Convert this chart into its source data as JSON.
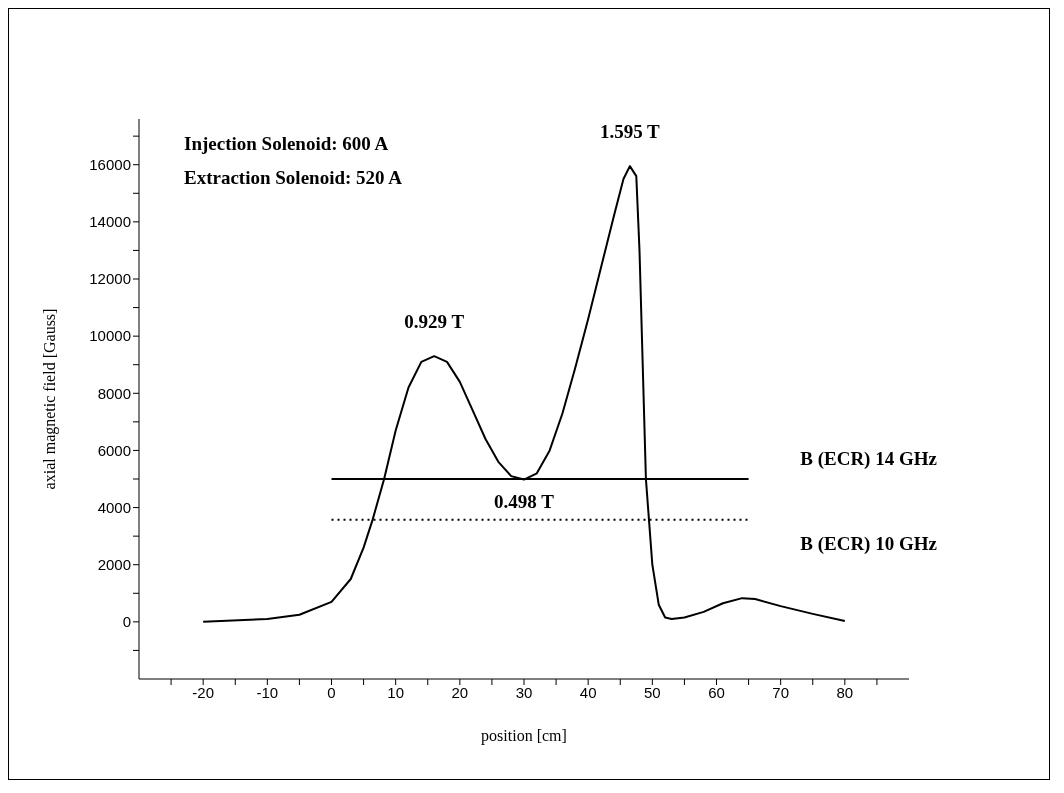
{
  "chart_data": {
    "type": "line",
    "xlabel": "position [cm]",
    "ylabel": "axial magnetic field  [Gauss]",
    "xlim": [
      -30,
      90
    ],
    "xticks": [
      {
        "value": -25,
        "label": null
      },
      -20,
      {
        "value": -15,
        "label": null
      },
      -10,
      {
        "value": -5,
        "label": null
      },
      0,
      {
        "value": 5,
        "label": null
      },
      10,
      {
        "value": 15,
        "label": null
      },
      20,
      {
        "value": 25,
        "label": null
      },
      30,
      {
        "value": 35,
        "label": null
      },
      40,
      {
        "value": 45,
        "label": null
      },
      50,
      {
        "value": 55,
        "label": null
      },
      60,
      {
        "value": 65,
        "label": null
      },
      70,
      {
        "value": 75,
        "label": null
      },
      80,
      {
        "value": 85,
        "label": null
      }
    ],
    "ylim": [
      -2000,
      17600
    ],
    "yticks": [
      {
        "value": -1000,
        "label": null
      },
      0,
      {
        "value": 1000,
        "label": null
      },
      2000,
      {
        "value": 3000,
        "label": null
      },
      4000,
      {
        "value": 5000,
        "label": null
      },
      6000,
      {
        "value": 7000,
        "label": null
      },
      8000,
      {
        "value": 9000,
        "label": null
      },
      10000,
      {
        "value": 11000,
        "label": null
      },
      12000,
      {
        "value": 13000,
        "label": null
      },
      14000,
      {
        "value": 15000,
        "label": null
      },
      16000,
      {
        "value": 17000,
        "label": null
      }
    ],
    "grid": false,
    "legend": false,
    "marker": "none",
    "series": [
      {
        "color": "#000000",
        "line_style": "solid",
        "x": [
          -20,
          -10,
          -5,
          0,
          3,
          5,
          6.4,
          8.2,
          10,
          12,
          14,
          16,
          18,
          20,
          22,
          24,
          26,
          28,
          30,
          32,
          34,
          36,
          38,
          40,
          42,
          44,
          45.5,
          46.5,
          47.5,
          48,
          48.5,
          49,
          50,
          51,
          52,
          53,
          55,
          58,
          61,
          64,
          66,
          70,
          75,
          80
        ],
        "values": [
          0,
          100,
          250,
          700,
          1500,
          2600,
          3570,
          5000,
          6700,
          8200,
          9100,
          9300,
          9100,
          8400,
          7400,
          6400,
          5600,
          5100,
          4980,
          5200,
          6000,
          7300,
          8900,
          10600,
          12400,
          14200,
          15500,
          15950,
          15600,
          13000,
          9000,
          5000,
          2000,
          600,
          150,
          100,
          150,
          350,
          650,
          830,
          800,
          550,
          280,
          30
        ]
      },
      {
        "name": "B (ECR) 14 GHz",
        "color": "#000000",
        "line_style": "solid",
        "x": [
          0,
          65
        ],
        "values": [
          5000,
          5000
        ]
      },
      {
        "name": "B (ECR) 10 GHz",
        "color": "#000000",
        "line_style": "dotted",
        "x": [
          0,
          65
        ],
        "values": [
          3570,
          3570
        ]
      }
    ],
    "annotations": [
      "Injection Solenoid: 600 A",
      "Extraction Solenoid: 520 A",
      {
        "text": "0.929 T",
        "x": 16,
        "y": 9300
      },
      {
        "text": "1.595 T",
        "x": 46.5,
        "y": 15950
      },
      {
        "text": "0.498 T",
        "x": 30,
        "y": 4980
      }
    ]
  }
}
